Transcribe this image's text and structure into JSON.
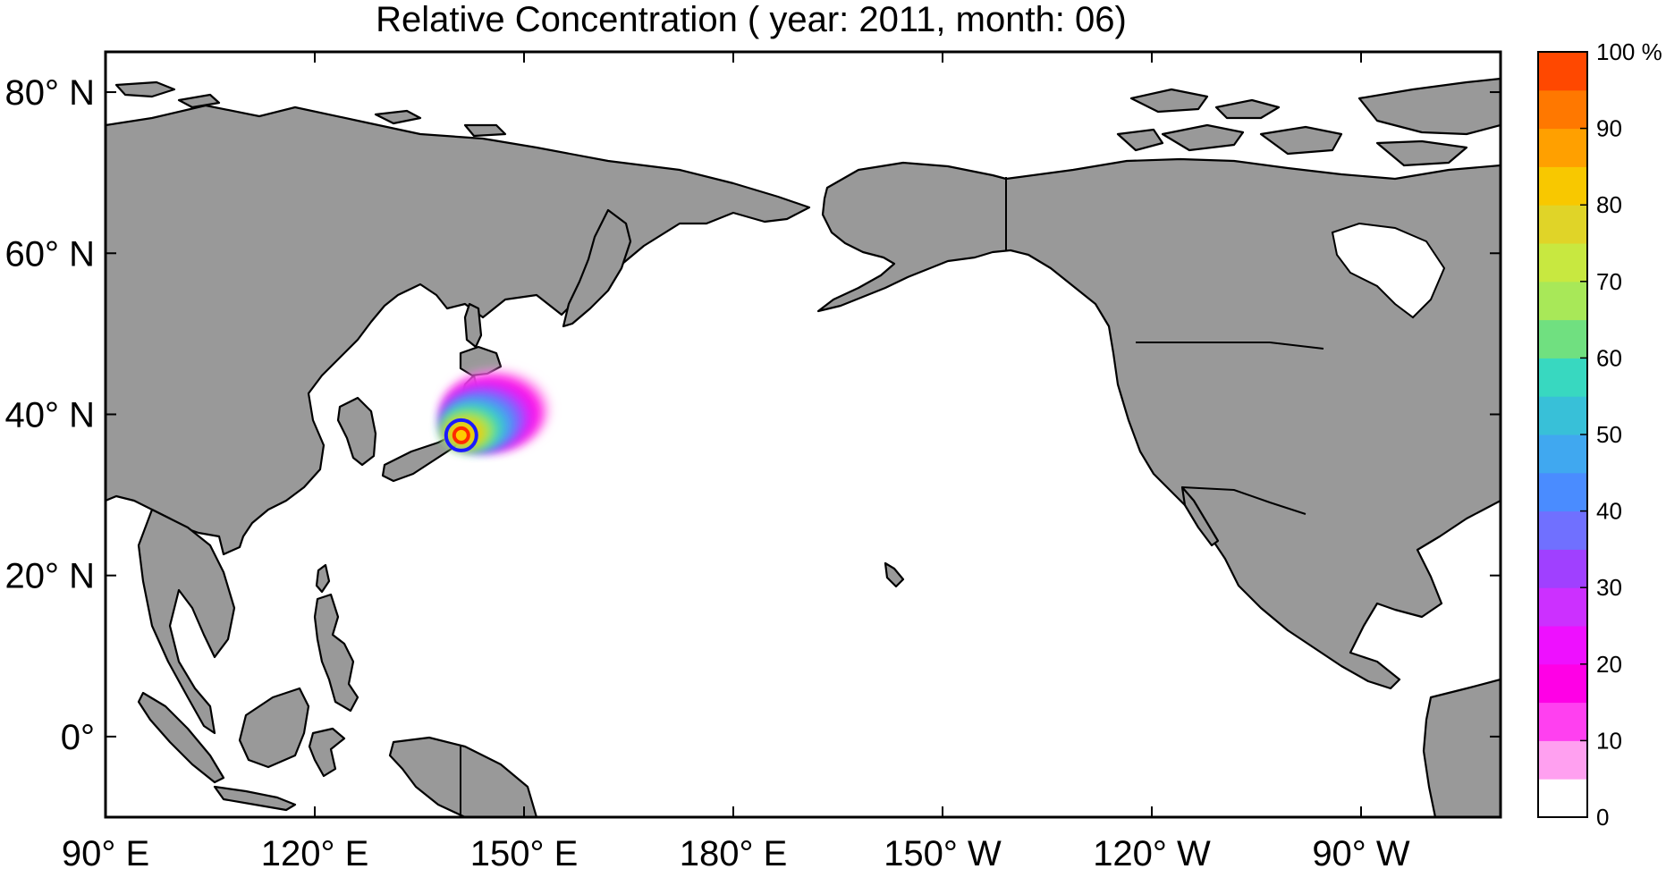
{
  "colors": {
    "land": "#999999",
    "coast": "#000000",
    "ocean": "#ffffff",
    "marker_inner": "#ff2a00",
    "marker_outer": "#1a1aff"
  },
  "chart_data": {
    "type": "heatmap",
    "title": "Relative Concentration ( year: 2011, month: 06)",
    "projection": "equirectangular",
    "xlim_lon": [
      90,
      290
    ],
    "ylim_lat": [
      -10,
      85
    ],
    "x_ticks": [
      {
        "lon": 90,
        "label": "90° E"
      },
      {
        "lon": 120,
        "label": "120° E"
      },
      {
        "lon": 150,
        "label": "150° E"
      },
      {
        "lon": 180,
        "label": "180° E"
      },
      {
        "lon": 210,
        "label": "150° W"
      },
      {
        "lon": 240,
        "label": "120° W"
      },
      {
        "lon": 270,
        "label": "90° W"
      }
    ],
    "y_ticks": [
      {
        "lat": 80,
        "label": "80° N"
      },
      {
        "lat": 60,
        "label": "60° N"
      },
      {
        "lat": 40,
        "label": "40° N"
      },
      {
        "lat": 20,
        "label": "20° N"
      },
      {
        "lat": 0,
        "label": "0°"
      }
    ],
    "colorbar": {
      "range": [
        0,
        100
      ],
      "unit_label": "100 %",
      "tick_labels": [
        {
          "value": 100,
          "label": "100 %"
        },
        {
          "value": 90,
          "label": "90"
        },
        {
          "value": 80,
          "label": "80"
        },
        {
          "value": 70,
          "label": "70"
        },
        {
          "value": 60,
          "label": "60"
        },
        {
          "value": 50,
          "label": "50"
        },
        {
          "value": 40,
          "label": "40"
        },
        {
          "value": 30,
          "label": "30"
        },
        {
          "value": 20,
          "label": "20"
        },
        {
          "value": 10,
          "label": "10"
        },
        {
          "value": 0,
          "label": "0"
        }
      ],
      "levels": [
        "#ffffff",
        "#ffa0f0",
        "#ff40f0",
        "#ff00e6",
        "#ee10ff",
        "#cc30ff",
        "#a040ff",
        "#7070ff",
        "#4a8cff",
        "#40a8f0",
        "#38c0d8",
        "#38d8c0",
        "#70e080",
        "#a8e858",
        "#c8e840",
        "#e0d428",
        "#f8c800",
        "#ffa000",
        "#ff7800",
        "#ff4800"
      ]
    },
    "source": {
      "lon": 141.0,
      "lat": 37.4
    },
    "plume": [
      {
        "lon": 146.0,
        "lat": 40.6,
        "value": 8
      },
      {
        "lon": 145.4,
        "lat": 40.2,
        "value": 15
      },
      {
        "lon": 144.7,
        "lat": 39.7,
        "value": 25
      },
      {
        "lon": 144.0,
        "lat": 39.3,
        "value": 35
      },
      {
        "lon": 143.3,
        "lat": 38.8,
        "value": 45
      },
      {
        "lon": 142.6,
        "lat": 38.4,
        "value": 55
      },
      {
        "lon": 142.0,
        "lat": 38.0,
        "value": 65
      },
      {
        "lon": 141.5,
        "lat": 37.7,
        "value": 80
      }
    ]
  }
}
